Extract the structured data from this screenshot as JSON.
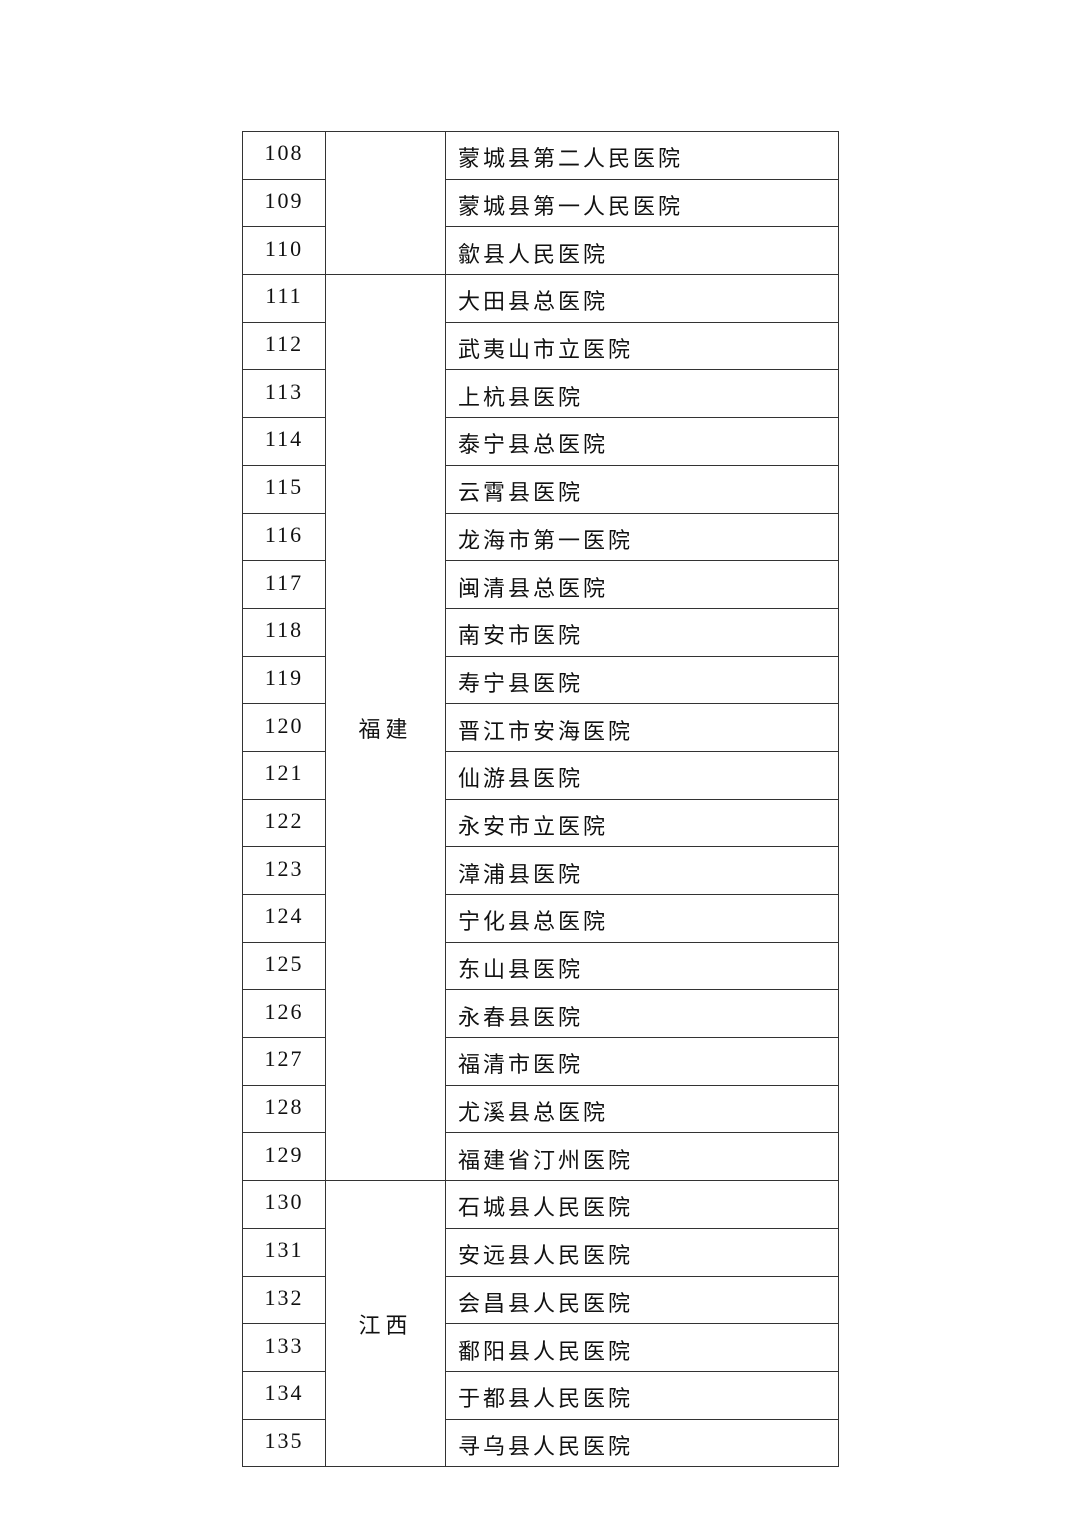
{
  "table": {
    "groups": [
      {
        "province": "",
        "rows": [
          {
            "no": "108",
            "name": "蒙城县第二人民医院"
          },
          {
            "no": "109",
            "name": "蒙城县第一人民医院"
          },
          {
            "no": "110",
            "name": "歙县人民医院"
          }
        ]
      },
      {
        "province": "福建",
        "rows": [
          {
            "no": "111",
            "name": "大田县总医院"
          },
          {
            "no": "112",
            "name": "武夷山市立医院"
          },
          {
            "no": "113",
            "name": "上杭县医院"
          },
          {
            "no": "114",
            "name": "泰宁县总医院"
          },
          {
            "no": "115",
            "name": "云霄县医院"
          },
          {
            "no": "116",
            "name": "龙海市第一医院"
          },
          {
            "no": "117",
            "name": "闽清县总医院"
          },
          {
            "no": "118",
            "name": "南安市医院"
          },
          {
            "no": "119",
            "name": "寿宁县医院"
          },
          {
            "no": "120",
            "name": "晋江市安海医院"
          },
          {
            "no": "121",
            "name": "仙游县医院"
          },
          {
            "no": "122",
            "name": "永安市立医院"
          },
          {
            "no": "123",
            "name": "漳浦县医院"
          },
          {
            "no": "124",
            "name": "宁化县总医院"
          },
          {
            "no": "125",
            "name": "东山县医院"
          },
          {
            "no": "126",
            "name": "永春县医院"
          },
          {
            "no": "127",
            "name": "福清市医院"
          },
          {
            "no": "128",
            "name": "尤溪县总医院"
          },
          {
            "no": "129",
            "name": "福建省汀州医院"
          }
        ]
      },
      {
        "province": "江西",
        "rows": [
          {
            "no": "130",
            "name": "石城县人民医院"
          },
          {
            "no": "131",
            "name": "安远县人民医院"
          },
          {
            "no": "132",
            "name": "会昌县人民医院"
          },
          {
            "no": "133",
            "name": "鄱阳县人民医院"
          },
          {
            "no": "134",
            "name": "于都县人民医院"
          },
          {
            "no": "135",
            "name": "寻乌县人民医院"
          }
        ]
      }
    ]
  }
}
